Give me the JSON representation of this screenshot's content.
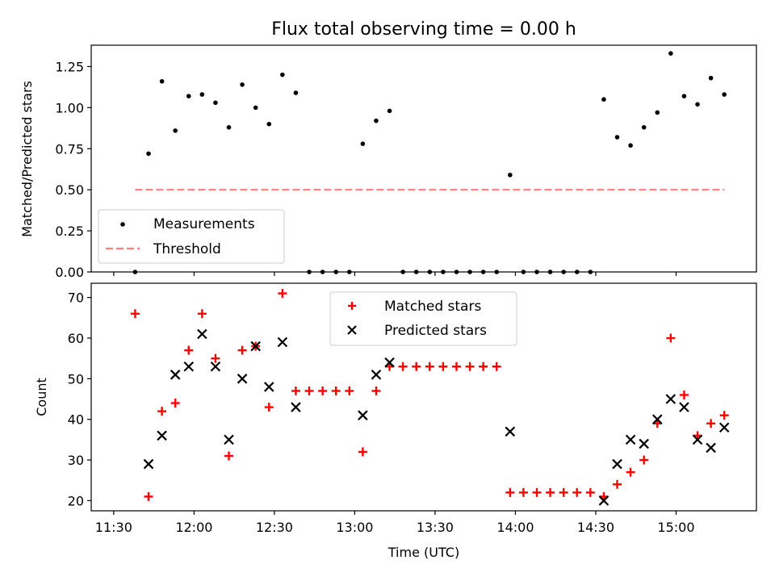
{
  "colors": {
    "measurement": "#000000",
    "threshold": "#ff7f7f",
    "matched": "#ff0000",
    "predicted": "#000000"
  },
  "chart_data": [
    {
      "type": "scatter",
      "title": "Flux total observing time = 0.00 h",
      "xlabel": "",
      "ylabel": "Matched/Predicted stars",
      "xlim": [
        "11:30",
        "15:30"
      ],
      "ylim": [
        0,
        1.38
      ],
      "yticks": [
        0.0,
        0.25,
        0.5,
        0.75,
        1.0,
        1.25
      ],
      "ytick_labels": [
        "0.00",
        "0.25",
        "0.50",
        "0.75",
        "1.00",
        "1.25"
      ],
      "legend_position": "lower-left",
      "x": [
        "11:38",
        "11:43",
        "11:48",
        "11:53",
        "11:58",
        "12:03",
        "12:08",
        "12:13",
        "12:18",
        "12:23",
        "12:28",
        "12:33",
        "12:38",
        "12:43",
        "12:48",
        "12:53",
        "12:58",
        "13:03",
        "13:08",
        "13:13",
        "13:18",
        "13:23",
        "13:28",
        "13:33",
        "13:38",
        "13:43",
        "13:48",
        "13:53",
        "13:58",
        "14:03",
        "14:08",
        "14:13",
        "14:18",
        "14:23",
        "14:28",
        "14:33",
        "14:38",
        "14:43",
        "14:48",
        "14:53",
        "14:58",
        "15:03",
        "15:08",
        "15:13",
        "15:18"
      ],
      "series": [
        {
          "name": "Measurements",
          "values": [
            0.0,
            0.72,
            1.16,
            0.86,
            1.07,
            1.08,
            1.03,
            0.88,
            1.14,
            1.0,
            0.9,
            1.2,
            1.09,
            0.0,
            0.0,
            0.0,
            0.0,
            0.78,
            0.92,
            0.98,
            0.0,
            0.0,
            0.0,
            0.0,
            0.0,
            0.0,
            0.0,
            0.0,
            0.59,
            0.0,
            0.0,
            0.0,
            0.0,
            0.0,
            0.0,
            1.05,
            0.82,
            0.77,
            0.88,
            0.97,
            1.33,
            1.07,
            1.02,
            1.18,
            1.08
          ]
        },
        {
          "name": "Threshold",
          "line": {
            "x": [
              "11:38",
              "15:18"
            ],
            "values": [
              0.5,
              0.5
            ]
          }
        }
      ]
    },
    {
      "type": "scatter",
      "title": "",
      "xlabel": "Time (UTC)",
      "ylabel": "Count",
      "xlim": [
        "11:30",
        "15:30"
      ],
      "xticks": [
        "11:30",
        "12:00",
        "12:30",
        "13:00",
        "13:30",
        "14:00",
        "14:30",
        "15:00"
      ],
      "ylim": [
        17.5,
        73.5
      ],
      "yticks": [
        20,
        30,
        40,
        50,
        60,
        70
      ],
      "legend_position": "upper-center",
      "x": [
        "11:38",
        "11:43",
        "11:48",
        "11:53",
        "11:58",
        "12:03",
        "12:08",
        "12:13",
        "12:18",
        "12:23",
        "12:28",
        "12:33",
        "12:38",
        "12:43",
        "12:48",
        "12:53",
        "12:58",
        "13:03",
        "13:08",
        "13:13",
        "13:18",
        "13:23",
        "13:28",
        "13:33",
        "13:38",
        "13:43",
        "13:48",
        "13:53",
        "13:58",
        "14:03",
        "14:08",
        "14:13",
        "14:18",
        "14:23",
        "14:28",
        "14:33",
        "14:38",
        "14:43",
        "14:48",
        "14:53",
        "14:58",
        "15:03",
        "15:08",
        "15:13",
        "15:18"
      ],
      "series": [
        {
          "name": "Matched stars",
          "values": [
            66,
            21,
            42,
            44,
            57,
            66,
            55,
            31,
            57,
            58,
            43,
            71,
            47,
            47,
            47,
            47,
            47,
            32,
            47,
            53,
            53,
            53,
            53,
            53,
            53,
            53,
            53,
            53,
            22,
            22,
            22,
            22,
            22,
            22,
            22,
            21,
            24,
            27,
            30,
            39,
            60,
            46,
            36,
            39,
            41
          ]
        },
        {
          "name": "Predicted stars",
          "values": [
            null,
            29,
            36,
            51,
            53,
            61,
            53,
            35,
            50,
            58,
            48,
            59,
            43,
            null,
            null,
            null,
            null,
            41,
            51,
            54,
            null,
            null,
            null,
            null,
            null,
            null,
            null,
            null,
            37,
            null,
            null,
            null,
            null,
            null,
            null,
            20,
            29,
            35,
            34,
            40,
            45,
            43,
            35,
            33,
            38
          ]
        }
      ]
    }
  ]
}
